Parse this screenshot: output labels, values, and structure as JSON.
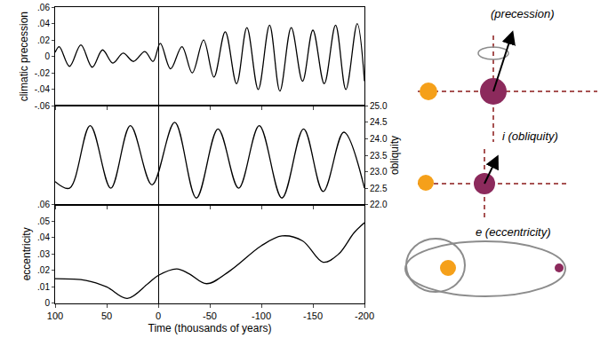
{
  "chart_data": [
    {
      "type": "line",
      "y_label": "climatic precession",
      "tick_labels": "y",
      "grid": false,
      "xlim": [
        100,
        -200
      ],
      "xticks": [
        100,
        50,
        0,
        -50,
        -100,
        -150,
        -200
      ],
      "ylim": [
        -0.06,
        0.06
      ],
      "yticks": [
        {
          "value": 0.06,
          "label": ".06"
        },
        {
          "value": 0.04,
          "label": ".04"
        },
        {
          "value": 0.02,
          "label": ".02"
        },
        0,
        {
          "value": -0.02,
          "label": "-.02"
        },
        {
          "value": -0.04,
          "label": "-.04"
        },
        {
          "value": -0.06,
          "label": "-.06"
        }
      ],
      "color": "#000000",
      "x": [
        100,
        96,
        86,
        75,
        64,
        54,
        44,
        34,
        24,
        13,
        5,
        -2,
        -12,
        -23,
        -33,
        -44,
        -54,
        -65,
        -76,
        -86,
        -97,
        -108,
        -118,
        -129,
        -140,
        -150,
        -161,
        -172,
        -182,
        -193,
        -200
      ],
      "values": [
        0.005,
        0.012,
        -0.012,
        0.014,
        -0.013,
        0.008,
        -0.008,
        0.004,
        -0.006,
        0.006,
        -0.006,
        0.016,
        -0.015,
        0.012,
        -0.02,
        0.02,
        -0.025,
        0.03,
        -0.033,
        0.035,
        -0.04,
        0.038,
        -0.042,
        0.035,
        -0.03,
        0.032,
        -0.033,
        0.038,
        -0.04,
        0.04,
        -0.03
      ]
    },
    {
      "type": "line",
      "y_label": "obliquity",
      "tick_labels": "y",
      "grid": false,
      "xlim": [
        100,
        -200
      ],
      "xticks": [
        100,
        50,
        0,
        -50,
        -100,
        -150,
        -200
      ],
      "ylim": [
        22.0,
        25.0
      ],
      "yticks": [
        {
          "value": 22.0,
          "label": "22.0"
        },
        {
          "value": 22.5,
          "label": "22.5"
        },
        {
          "value": 23.0,
          "label": "23.0"
        },
        {
          "value": 23.5,
          "label": "23.5"
        },
        {
          "value": 24.0,
          "label": "24.0"
        },
        {
          "value": 24.5,
          "label": "24.5"
        },
        {
          "value": 25.0,
          "label": "25.0"
        }
      ],
      "color": "#000000",
      "x": [
        100,
        86,
        66,
        46,
        27,
        6,
        -16,
        -37,
        -58,
        -78,
        -98,
        -120,
        -141,
        -160,
        -180,
        -200
      ],
      "values": [
        22.7,
        22.5,
        24.4,
        22.5,
        24.4,
        22.6,
        24.5,
        22.2,
        24.3,
        22.5,
        24.4,
        22.2,
        24.3,
        22.4,
        24.2,
        22.5
      ]
    },
    {
      "type": "line",
      "y_label": "eccentricity",
      "x_label": "Time (thousands of years)",
      "grid": false,
      "xlim": [
        100,
        -200
      ],
      "xticks": [
        100,
        50,
        0,
        -50,
        -100,
        -150,
        -200
      ],
      "ylim": [
        0,
        0.06
      ],
      "yticks": [
        0,
        {
          "value": 0.01,
          "label": ".01"
        },
        {
          "value": 0.02,
          "label": ".02"
        },
        {
          "value": 0.03,
          "label": ".03"
        },
        {
          "value": 0.04,
          "label": ".04"
        },
        {
          "value": 0.05,
          "label": ".05"
        },
        {
          "value": 0.06,
          "label": ".06"
        }
      ],
      "color": "#000000",
      "x": [
        100,
        70,
        50,
        30,
        10,
        0,
        -18,
        -30,
        -47,
        -70,
        -100,
        -120,
        -140,
        -160,
        -175,
        -190,
        -200
      ],
      "values": [
        0.015,
        0.014,
        0.01,
        0.003,
        0.012,
        0.017,
        0.021,
        0.018,
        0.012,
        0.02,
        0.035,
        0.041,
        0.038,
        0.025,
        0.03,
        0.043,
        0.049
      ]
    }
  ],
  "diagram": {
    "panels": [
      {
        "label": "(precession)"
      },
      {
        "label": "i (obliquity)"
      },
      {
        "label": "e (eccentricity)"
      }
    ]
  }
}
